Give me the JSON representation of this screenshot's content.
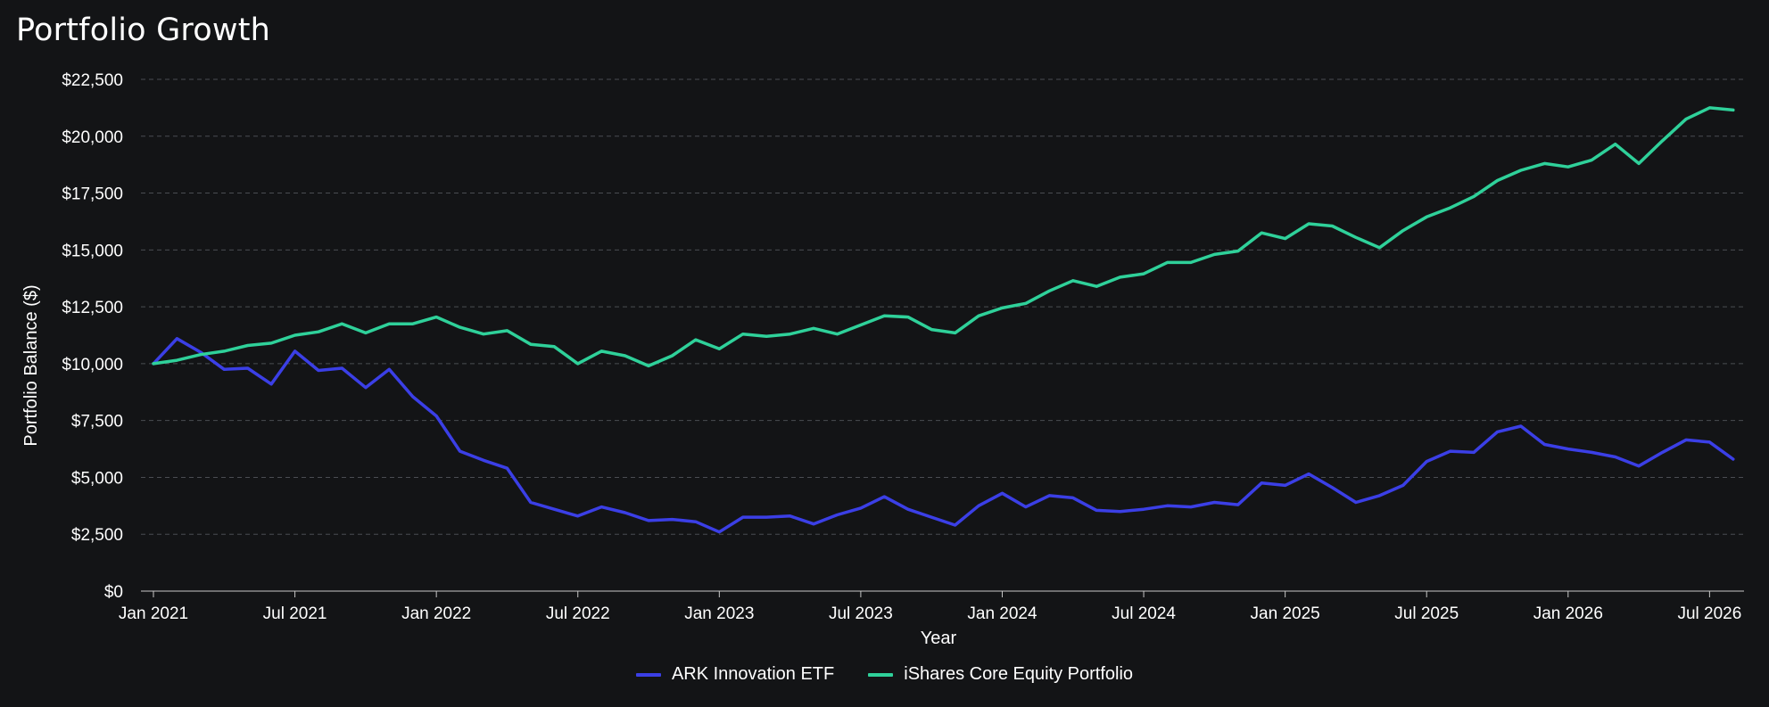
{
  "chart_data": {
    "type": "line",
    "title": "Portfolio Growth",
    "xlabel": "Year",
    "ylabel": "Portfolio Balance ($)",
    "ylim": [
      0,
      22500
    ],
    "y_ticks": [
      0,
      2500,
      5000,
      7500,
      10000,
      12500,
      15000,
      17500,
      20000,
      22500
    ],
    "y_tick_labels": [
      "$0",
      "$2,500",
      "$5,000",
      "$7,500",
      "$10,000",
      "$12,500",
      "$15,000",
      "$17,500",
      "$20,000",
      "$22,500"
    ],
    "x_start": "2021-01",
    "x_tick_labels": [
      "Jan 2021",
      "Jul 2021",
      "Jan 2022",
      "Jul 2022",
      "Jan 2023",
      "Jul 2023",
      "Jan 2024",
      "Jul 2024",
      "Jan 2025",
      "Jul 2025",
      "Jan 2026",
      "Jul 2026"
    ],
    "grid": true,
    "legend_position": "bottom-center",
    "x": [
      "2021-01",
      "2021-02",
      "2021-03",
      "2021-04",
      "2021-05",
      "2021-06",
      "2021-07",
      "2021-08",
      "2021-09",
      "2021-10",
      "2021-11",
      "2021-12",
      "2022-01",
      "2022-02",
      "2022-03",
      "2022-04",
      "2022-05",
      "2022-06",
      "2022-07",
      "2022-08",
      "2022-09",
      "2022-10",
      "2022-11",
      "2022-12",
      "2023-01",
      "2023-02",
      "2023-03",
      "2023-04",
      "2023-05",
      "2023-06",
      "2023-07",
      "2023-08",
      "2023-09",
      "2023-10",
      "2023-11",
      "2023-12",
      "2024-01",
      "2024-02",
      "2024-03",
      "2024-04",
      "2024-05",
      "2024-06",
      "2024-07",
      "2024-08",
      "2024-09",
      "2024-10",
      "2024-11",
      "2024-12",
      "2025-01",
      "2025-02",
      "2025-03",
      "2025-04",
      "2025-05",
      "2025-06",
      "2025-07",
      "2025-08",
      "2025-09",
      "2025-10",
      "2025-11",
      "2025-12",
      "2026-01",
      "2026-02",
      "2026-03",
      "2026-04",
      "2026-05",
      "2026-06",
      "2026-07",
      "2026-08"
    ],
    "series": [
      {
        "name": "ARK Innovation ETF",
        "color": "#3b3fe6",
        "values": [
          10000,
          11100,
          10500,
          9750,
          9800,
          9100,
          10550,
          9700,
          9800,
          8950,
          9750,
          8550,
          7700,
          6150,
          5750,
          5400,
          3900,
          3600,
          3300,
          3700,
          3450,
          3100,
          3150,
          3050,
          2600,
          3250,
          3250,
          3300,
          2950,
          3350,
          3650,
          4150,
          3600,
          3250,
          2900,
          3750,
          4300,
          3700,
          4200,
          4100,
          3550,
          3500,
          3600,
          3750,
          3700,
          3900,
          3800,
          4750,
          4650,
          5150,
          4550,
          3900,
          4200,
          4650,
          5700,
          6150,
          6100,
          7000,
          7250,
          6450,
          6250,
          6100,
          5900,
          5500,
          6100,
          6650,
          6550,
          5800
        ]
      },
      {
        "name": "iShares Core Equity Portfolio",
        "color": "#2fd19a",
        "values": [
          10000,
          10150,
          10400,
          10550,
          10800,
          10900,
          11250,
          11400,
          11750,
          11350,
          11750,
          11750,
          12050,
          11600,
          11300,
          11450,
          10850,
          10750,
          10000,
          10550,
          10350,
          9900,
          10350,
          11050,
          10650,
          11300,
          11200,
          11300,
          11550,
          11300,
          11700,
          12100,
          12050,
          11500,
          11350,
          12100,
          12450,
          12650,
          13200,
          13650,
          13400,
          13800,
          13950,
          14450,
          14450,
          14800,
          14950,
          15750,
          15500,
          16150,
          16050,
          15550,
          15100,
          15850,
          16450,
          16850,
          17350,
          18050,
          18500,
          18800,
          18650,
          18950,
          19650,
          18800,
          19800,
          20750,
          21250,
          21150
        ]
      }
    ]
  }
}
